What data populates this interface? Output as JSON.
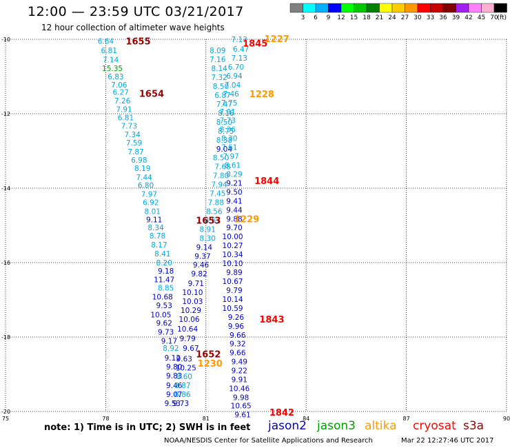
{
  "header": {
    "title": "12:00 — 23:59 UTC 03/21/2017",
    "subtitle": "12 hour collection of altimeter wave heights"
  },
  "colorbar": {
    "labels": [
      "3",
      "6",
      "9",
      "12",
      "15",
      "18",
      "21",
      "24",
      "27",
      "30",
      "33",
      "36",
      "39",
      "42",
      "45",
      "70",
      "(ft)"
    ],
    "colors": [
      "#808080",
      "#00ffff",
      "#00b0ff",
      "#0000ff",
      "#00ff00",
      "#00c800",
      "#008000",
      "#ffff00",
      "#ffcc00",
      "#ff9900",
      "#ff0000",
      "#c80000",
      "#800000",
      "#a020f0",
      "#ff80ff",
      "#ffb0d0",
      "#000000"
    ]
  },
  "sat_colors": {
    "jason2": "#0000cc",
    "jason3": "#00a000",
    "altika": "#ff9900",
    "cryosat": "#ff0000",
    "s3a": "#990000",
    "light_blue": "#00a8e0"
  },
  "chart_data": {
    "type": "scatter",
    "title": "12:00 — 23:59 UTC 03/21/2017",
    "subtitle": "12 hour collection of altimeter wave heights",
    "x_axis": {
      "range": [
        75,
        90
      ],
      "ticks": [
        "75",
        "78",
        "81",
        "84",
        "87",
        "90"
      ]
    },
    "y_axis": {
      "range": [
        -20,
        -10
      ],
      "ticks": [
        "-10",
        "-12",
        "-14",
        "-16",
        "-18",
        "-20"
      ]
    },
    "unit": "ft",
    "points": [
      {
        "lon": 78.0,
        "lat": -10.05,
        "value": "6.64",
        "color": "#00a8e0"
      },
      {
        "lon": 78.1,
        "lat": -10.3,
        "value": "6.81",
        "color": "#00a8e0"
      },
      {
        "lon": 78.15,
        "lat": -10.55,
        "value": "7.14",
        "color": "#00a8e0"
      },
      {
        "lon": 78.2,
        "lat": -10.78,
        "value": "15.35",
        "color": "#00a000"
      },
      {
        "lon": 78.3,
        "lat": -11.0,
        "value": "6.83",
        "color": "#00a8e0"
      },
      {
        "lon": 78.4,
        "lat": -11.22,
        "value": "7.06",
        "color": "#00a8e0"
      },
      {
        "lon": 78.45,
        "lat": -11.42,
        "value": "6.27",
        "color": "#00a8e0"
      },
      {
        "lon": 78.5,
        "lat": -11.65,
        "value": "7.26",
        "color": "#00a8e0"
      },
      {
        "lon": 78.55,
        "lat": -11.88,
        "value": "7.91",
        "color": "#00a8e0"
      },
      {
        "lon": 78.6,
        "lat": -12.1,
        "value": "6.81",
        "color": "#00a8e0"
      },
      {
        "lon": 78.7,
        "lat": -12.32,
        "value": "7.73",
        "color": "#00a8e0"
      },
      {
        "lon": 78.8,
        "lat": -12.56,
        "value": "7.34",
        "color": "#00a8e0"
      },
      {
        "lon": 78.85,
        "lat": -12.78,
        "value": "7.59",
        "color": "#00a8e0"
      },
      {
        "lon": 78.9,
        "lat": -13.02,
        "value": "7.87",
        "color": "#00a8e0"
      },
      {
        "lon": 79.0,
        "lat": -13.24,
        "value": "6.98",
        "color": "#00a8e0"
      },
      {
        "lon": 79.1,
        "lat": -13.46,
        "value": "8.19",
        "color": "#00a8e0"
      },
      {
        "lon": 79.15,
        "lat": -13.7,
        "value": "7.44",
        "color": "#00a8e0"
      },
      {
        "lon": 79.2,
        "lat": -13.92,
        "value": "6.80",
        "color": "#00a8e0"
      },
      {
        "lon": 79.3,
        "lat": -14.16,
        "value": "7.97",
        "color": "#00a8e0"
      },
      {
        "lon": 79.35,
        "lat": -14.38,
        "value": "6.92",
        "color": "#00a8e0"
      },
      {
        "lon": 79.4,
        "lat": -14.62,
        "value": "8.01",
        "color": "#00a8e0"
      },
      {
        "lon": 79.45,
        "lat": -14.84,
        "value": "9.11",
        "color": "#0000cc"
      },
      {
        "lon": 79.5,
        "lat": -15.06,
        "value": "8.34",
        "color": "#00a8e0"
      },
      {
        "lon": 79.55,
        "lat": -15.28,
        "value": "8.78",
        "color": "#00a8e0"
      },
      {
        "lon": 79.6,
        "lat": -15.52,
        "value": "8.17",
        "color": "#00a8e0"
      },
      {
        "lon": 79.7,
        "lat": -15.76,
        "value": "8.41",
        "color": "#00a8e0"
      },
      {
        "lon": 79.75,
        "lat": -16.0,
        "value": "8.20",
        "color": "#00a8e0"
      },
      {
        "lon": 79.8,
        "lat": -16.22,
        "value": "9.18",
        "color": "#0000cc"
      },
      {
        "lon": 79.75,
        "lat": -16.45,
        "value": "11.47",
        "color": "#0000cc"
      },
      {
        "lon": 79.8,
        "lat": -16.68,
        "value": "8.85",
        "color": "#00a8e0"
      },
      {
        "lon": 79.7,
        "lat": -16.92,
        "value": "10.68",
        "color": "#0000cc"
      },
      {
        "lon": 79.75,
        "lat": -17.15,
        "value": "9.53",
        "color": "#0000cc"
      },
      {
        "lon": 79.65,
        "lat": -17.4,
        "value": "10.05",
        "color": "#0000cc"
      },
      {
        "lon": 79.75,
        "lat": -17.62,
        "value": "9.62",
        "color": "#0000cc"
      },
      {
        "lon": 79.8,
        "lat": -17.86,
        "value": "9.73",
        "color": "#0000cc"
      },
      {
        "lon": 79.9,
        "lat": -18.1,
        "value": "9.17",
        "color": "#0000cc"
      },
      {
        "lon": 79.95,
        "lat": -18.3,
        "value": "8.92",
        "color": "#00a8e0"
      },
      {
        "lon": 80.0,
        "lat": -18.56,
        "value": "9.12",
        "color": "#0000cc"
      },
      {
        "lon": 80.05,
        "lat": -18.8,
        "value": "9.80",
        "color": "#0000cc"
      },
      {
        "lon": 80.05,
        "lat": -19.04,
        "value": "9.83",
        "color": "#0000cc"
      },
      {
        "lon": 80.05,
        "lat": -19.3,
        "value": "9.46",
        "color": "#0000cc"
      },
      {
        "lon": 80.05,
        "lat": -19.54,
        "value": "9.07",
        "color": "#0000cc"
      },
      {
        "lon": 80.0,
        "lat": -19.78,
        "value": "9.53",
        "color": "#0000cc"
      },
      {
        "lon": 80.25,
        "lat": -19.78,
        "value": "9.73",
        "color": "#0000cc"
      },
      {
        "lon": 80.3,
        "lat": -19.54,
        "value": "8.86",
        "color": "#00a8e0"
      },
      {
        "lon": 80.3,
        "lat": -19.3,
        "value": "8.87",
        "color": "#00a8e0"
      },
      {
        "lon": 80.35,
        "lat": -19.06,
        "value": "8.60",
        "color": "#00a8e0"
      },
      {
        "lon": 80.4,
        "lat": -18.82,
        "value": "10.25",
        "color": "#0000cc"
      },
      {
        "lon": 80.35,
        "lat": -18.58,
        "value": "9.63",
        "color": "#0000cc"
      },
      {
        "lon": 80.55,
        "lat": -18.3,
        "value": "9.67",
        "color": "#0000cc"
      },
      {
        "lon": 80.45,
        "lat": -18.04,
        "value": "9.79",
        "color": "#0000cc"
      },
      {
        "lon": 80.45,
        "lat": -17.78,
        "value": "10.64",
        "color": "#0000cc"
      },
      {
        "lon": 80.5,
        "lat": -17.52,
        "value": "10.06",
        "color": "#0000cc"
      },
      {
        "lon": 80.55,
        "lat": -17.28,
        "value": "10.29",
        "color": "#0000cc"
      },
      {
        "lon": 80.6,
        "lat": -17.04,
        "value": "10.03",
        "color": "#0000cc"
      },
      {
        "lon": 80.6,
        "lat": -16.8,
        "value": "10.10",
        "color": "#0000cc"
      },
      {
        "lon": 80.7,
        "lat": -16.56,
        "value": "9.71",
        "color": "#0000cc"
      },
      {
        "lon": 80.8,
        "lat": -16.3,
        "value": "9.82",
        "color": "#0000cc"
      },
      {
        "lon": 80.85,
        "lat": -16.06,
        "value": "9.46",
        "color": "#0000cc"
      },
      {
        "lon": 80.9,
        "lat": -15.82,
        "value": "9.37",
        "color": "#0000cc"
      },
      {
        "lon": 80.95,
        "lat": -15.58,
        "value": "9.14",
        "color": "#0000cc"
      },
      {
        "lon": 81.05,
        "lat": -15.34,
        "value": "8.30",
        "color": "#00a8e0"
      },
      {
        "lon": 81.05,
        "lat": -15.1,
        "value": "8.91",
        "color": "#00a8e0"
      },
      {
        "lon": 81.2,
        "lat": -14.86,
        "value": "8.57",
        "color": "#00a8e0"
      },
      {
        "lon": 81.25,
        "lat": -14.62,
        "value": "8.56",
        "color": "#00a8e0"
      },
      {
        "lon": 81.3,
        "lat": -14.38,
        "value": "7.88",
        "color": "#00a8e0"
      },
      {
        "lon": 81.35,
        "lat": -14.14,
        "value": "7.45",
        "color": "#00a8e0"
      },
      {
        "lon": 81.4,
        "lat": -13.9,
        "value": "7.94",
        "color": "#00a8e0"
      },
      {
        "lon": 81.45,
        "lat": -13.66,
        "value": "7.80",
        "color": "#00a8e0"
      },
      {
        "lon": 81.5,
        "lat": -13.42,
        "value": "7.68",
        "color": "#00a8e0"
      },
      {
        "lon": 81.45,
        "lat": -13.18,
        "value": "8.50",
        "color": "#00a8e0"
      },
      {
        "lon": 81.55,
        "lat": -12.94,
        "value": "9.04",
        "color": "#0000cc"
      },
      {
        "lon": 81.55,
        "lat": -12.7,
        "value": "8.38",
        "color": "#00a8e0"
      },
      {
        "lon": 81.6,
        "lat": -12.46,
        "value": "8.75",
        "color": "#00a8e0"
      },
      {
        "lon": 81.55,
        "lat": -12.22,
        "value": "8.50",
        "color": "#00a8e0"
      },
      {
        "lon": 81.6,
        "lat": -11.98,
        "value": "8.16",
        "color": "#00a8e0"
      },
      {
        "lon": 81.55,
        "lat": -11.74,
        "value": "7.47",
        "color": "#00a8e0"
      },
      {
        "lon": 81.5,
        "lat": -11.5,
        "value": "6.87",
        "color": "#00a8e0"
      },
      {
        "lon": 81.45,
        "lat": -11.26,
        "value": "8.50",
        "color": "#00a8e0"
      },
      {
        "lon": 81.4,
        "lat": -11.02,
        "value": "7.32",
        "color": "#00a8e0"
      },
      {
        "lon": 81.4,
        "lat": -10.78,
        "value": "8.14",
        "color": "#00a8e0"
      },
      {
        "lon": 81.35,
        "lat": -10.54,
        "value": "7.16",
        "color": "#00a8e0"
      },
      {
        "lon": 81.35,
        "lat": -10.3,
        "value": "8.09",
        "color": "#00a8e0"
      },
      {
        "lon": 82.0,
        "lat": -10.0,
        "value": "7.13",
        "color": "#00a8e0"
      },
      {
        "lon": 82.05,
        "lat": -10.26,
        "value": "6.47",
        "color": "#00a8e0"
      },
      {
        "lon": 82.0,
        "lat": -10.5,
        "value": "7.13",
        "color": "#00a8e0"
      },
      {
        "lon": 81.9,
        "lat": -10.74,
        "value": "6.70",
        "color": "#00a8e0"
      },
      {
        "lon": 81.85,
        "lat": -10.98,
        "value": "6.94",
        "color": "#00a8e0"
      },
      {
        "lon": 81.8,
        "lat": -11.22,
        "value": "7.04",
        "color": "#00a8e0"
      },
      {
        "lon": 81.75,
        "lat": -11.46,
        "value": "7.46",
        "color": "#00a8e0"
      },
      {
        "lon": 81.7,
        "lat": -11.7,
        "value": "7.75",
        "color": "#00a8e0"
      },
      {
        "lon": 81.65,
        "lat": -11.94,
        "value": "7.91",
        "color": "#00a8e0"
      },
      {
        "lon": 81.65,
        "lat": -12.18,
        "value": "7.73",
        "color": "#00a8e0"
      },
      {
        "lon": 81.65,
        "lat": -12.42,
        "value": "8.36",
        "color": "#00a8e0"
      },
      {
        "lon": 81.7,
        "lat": -12.66,
        "value": "8.30",
        "color": "#00a8e0"
      },
      {
        "lon": 81.7,
        "lat": -12.9,
        "value": "7.61",
        "color": "#00a8e0"
      },
      {
        "lon": 81.75,
        "lat": -13.14,
        "value": "7.97",
        "color": "#00a8e0"
      },
      {
        "lon": 81.8,
        "lat": -13.38,
        "value": "8.61",
        "color": "#00a8e0"
      },
      {
        "lon": 81.85,
        "lat": -13.62,
        "value": "8.29",
        "color": "#00a8e0"
      },
      {
        "lon": 81.85,
        "lat": -13.86,
        "value": "9.21",
        "color": "#0000cc"
      },
      {
        "lon": 81.85,
        "lat": -14.1,
        "value": "9.50",
        "color": "#0000cc"
      },
      {
        "lon": 81.85,
        "lat": -14.34,
        "value": "9.41",
        "color": "#0000cc"
      },
      {
        "lon": 81.85,
        "lat": -14.58,
        "value": "9.44",
        "color": "#0000cc"
      },
      {
        "lon": 81.85,
        "lat": -14.82,
        "value": "9.88",
        "color": "#0000cc"
      },
      {
        "lon": 81.85,
        "lat": -15.06,
        "value": "9.70",
        "color": "#0000cc"
      },
      {
        "lon": 81.8,
        "lat": -15.3,
        "value": "10.00",
        "color": "#0000cc"
      },
      {
        "lon": 81.8,
        "lat": -15.54,
        "value": "10.27",
        "color": "#0000cc"
      },
      {
        "lon": 81.8,
        "lat": -15.78,
        "value": "10.34",
        "color": "#0000cc"
      },
      {
        "lon": 81.8,
        "lat": -16.02,
        "value": "10.10",
        "color": "#0000cc"
      },
      {
        "lon": 81.85,
        "lat": -16.26,
        "value": "9.89",
        "color": "#0000cc"
      },
      {
        "lon": 81.8,
        "lat": -16.5,
        "value": "10.67",
        "color": "#0000cc"
      },
      {
        "lon": 81.85,
        "lat": -16.74,
        "value": "9.79",
        "color": "#0000cc"
      },
      {
        "lon": 81.8,
        "lat": -16.98,
        "value": "10.14",
        "color": "#0000cc"
      },
      {
        "lon": 81.8,
        "lat": -17.22,
        "value": "10.59",
        "color": "#0000cc"
      },
      {
        "lon": 81.9,
        "lat": -17.46,
        "value": "9.26",
        "color": "#0000cc"
      },
      {
        "lon": 81.9,
        "lat": -17.7,
        "value": "9.96",
        "color": "#0000cc"
      },
      {
        "lon": 81.95,
        "lat": -17.94,
        "value": "9.66",
        "color": "#0000cc"
      },
      {
        "lon": 81.95,
        "lat": -18.18,
        "value": "9.32",
        "color": "#0000cc"
      },
      {
        "lon": 81.95,
        "lat": -18.42,
        "value": "9.66",
        "color": "#0000cc"
      },
      {
        "lon": 82.0,
        "lat": -18.66,
        "value": "9.49",
        "color": "#0000cc"
      },
      {
        "lon": 82.0,
        "lat": -18.9,
        "value": "9.22",
        "color": "#0000cc"
      },
      {
        "lon": 82.0,
        "lat": -19.14,
        "value": "9.91",
        "color": "#0000cc"
      },
      {
        "lon": 82.0,
        "lat": -19.38,
        "value": "10.46",
        "color": "#0000cc"
      },
      {
        "lon": 82.05,
        "lat": -19.62,
        "value": "9.98",
        "color": "#0000cc"
      },
      {
        "lon": 82.05,
        "lat": -19.84,
        "value": "10.65",
        "color": "#0000cc"
      },
      {
        "lon": 82.1,
        "lat": -20.08,
        "value": "9.61",
        "color": "#0000cc"
      }
    ],
    "pass_times": [
      {
        "lon": 78.6,
        "lat": -10.05,
        "label": "1655",
        "color": "#990000"
      },
      {
        "lon": 79.0,
        "lat": -11.45,
        "label": "1654",
        "color": "#990000"
      },
      {
        "lon": 80.7,
        "lat": -14.86,
        "label": "1653",
        "color": "#990000"
      },
      {
        "lon": 80.7,
        "lat": -18.45,
        "label": "1652",
        "color": "#990000"
      },
      {
        "lon": 82.1,
        "lat": -10.1,
        "label": "1845",
        "color": "#ff0000"
      },
      {
        "lon": 82.45,
        "lat": -13.8,
        "label": "1844",
        "color": "#ff0000"
      },
      {
        "lon": 82.6,
        "lat": -17.52,
        "label": "1843",
        "color": "#ff0000"
      },
      {
        "lon": 82.9,
        "lat": -20.02,
        "label": "1842",
        "color": "#ff0000"
      },
      {
        "lon": 82.75,
        "lat": -9.98,
        "label": "1227",
        "color": "#ff9900"
      },
      {
        "lon": 82.3,
        "lat": -11.46,
        "label": "1228",
        "color": "#ff9900"
      },
      {
        "lon": 81.85,
        "lat": -14.82,
        "label": "1229",
        "color": "#ff9900"
      },
      {
        "lon": 80.75,
        "lat": -18.7,
        "label": "1230",
        "color": "#ff9900"
      }
    ]
  },
  "notes": {
    "note_text": "note: 1) Time is in UTC; 2) SWH is in feet",
    "credit": "NOAA/NESDIS Center for Satellite Applications and Research",
    "timestamp": "Mar 22 12:27:46 UTC 2017"
  },
  "satellite_legend": [
    {
      "name": "jason2",
      "color": "#0000cc",
      "left": 389
    },
    {
      "name": "jason3",
      "color": "#00a000",
      "left": 460
    },
    {
      "name": "altika",
      "color": "#ff9900",
      "left": 529
    },
    {
      "name": "cryosat",
      "color": "#ff0000",
      "left": 599
    },
    {
      "name": "s3a",
      "color": "#990000",
      "left": 672
    }
  ]
}
